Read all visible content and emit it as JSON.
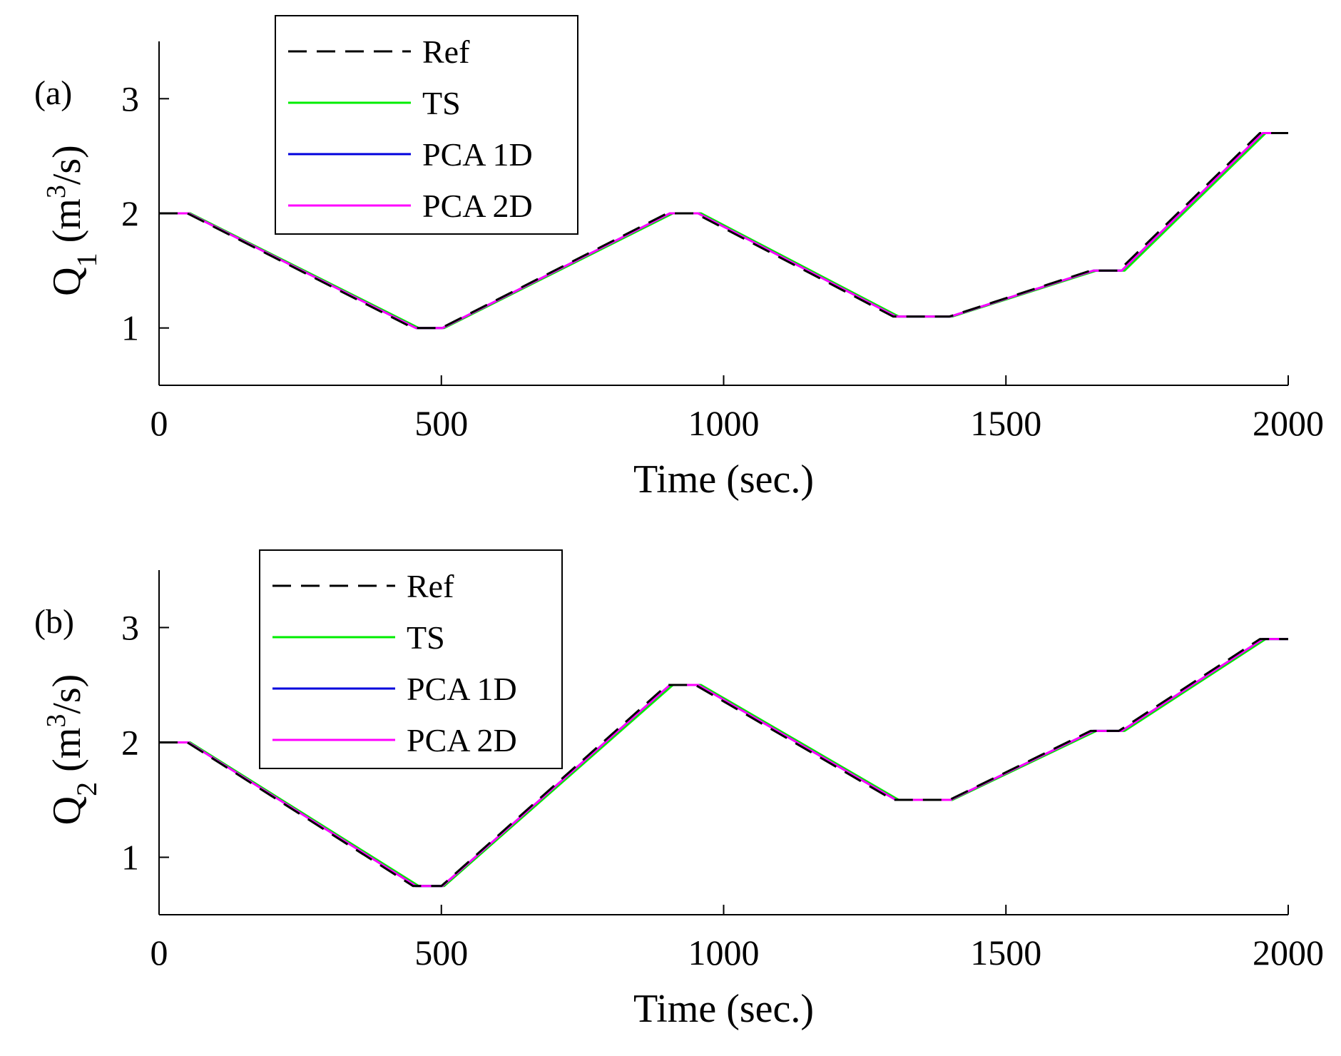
{
  "chart_data": [
    {
      "type": "line",
      "panel_label": "(a)",
      "xlabel": "Time (sec.)",
      "ylabel": {
        "main": "Q",
        "sub": "1",
        "unit_pre": "(m",
        "unit_sup": "3",
        "unit_post": "/s)"
      },
      "xlim": [
        0,
        2000
      ],
      "ylim": [
        0.5,
        3.5
      ],
      "xticks": [
        0,
        500,
        1000,
        1500,
        2000
      ],
      "yticks": [
        1,
        2,
        3
      ],
      "grid": false,
      "legend_position": "top-left",
      "series": [
        {
          "name": "Ref",
          "color": "#000000",
          "dash": true,
          "x": [
            0,
            50,
            450,
            500,
            900,
            950,
            1300,
            1400,
            1650,
            1700,
            1950,
            2000
          ],
          "y": [
            2.0,
            2.0,
            1.0,
            1.0,
            2.0,
            2.0,
            1.1,
            1.1,
            1.5,
            1.5,
            2.7,
            2.7
          ]
        },
        {
          "name": "TS",
          "color": "#00ee00",
          "dash": false,
          "x": [
            0,
            55,
            460,
            505,
            910,
            960,
            1310,
            1405,
            1660,
            1710,
            1960,
            2000
          ],
          "y": [
            2.0,
            2.0,
            1.0,
            1.0,
            2.0,
            2.0,
            1.1,
            1.1,
            1.5,
            1.5,
            2.7,
            2.7
          ]
        },
        {
          "name": "PCA 1D",
          "color": "#0000dd",
          "dash": false,
          "x": [
            0,
            52,
            455,
            502,
            905,
            955,
            1305,
            1402,
            1655,
            1705,
            1955,
            2000
          ],
          "y": [
            2.0,
            2.0,
            1.0,
            1.0,
            2.0,
            2.0,
            1.1,
            1.1,
            1.5,
            1.5,
            2.7,
            2.7
          ]
        },
        {
          "name": "PCA 2D",
          "color": "#ff00ff",
          "dash": false,
          "x": [
            0,
            52,
            455,
            502,
            905,
            955,
            1305,
            1402,
            1655,
            1705,
            1955,
            2000
          ],
          "y": [
            2.0,
            2.0,
            1.0,
            1.0,
            2.0,
            2.0,
            1.1,
            1.1,
            1.5,
            1.5,
            2.7,
            2.7
          ]
        }
      ]
    },
    {
      "type": "line",
      "panel_label": "(b)",
      "xlabel": "Time (sec.)",
      "ylabel": {
        "main": "Q",
        "sub": "2",
        "unit_pre": "(m",
        "unit_sup": "3",
        "unit_post": "/s)"
      },
      "xlim": [
        0,
        2000
      ],
      "ylim": [
        0.5,
        3.5
      ],
      "xticks": [
        0,
        500,
        1000,
        1500,
        2000
      ],
      "yticks": [
        1,
        2,
        3
      ],
      "grid": false,
      "legend_position": "top-left",
      "series": [
        {
          "name": "Ref",
          "color": "#000000",
          "dash": true,
          "x": [
            0,
            50,
            450,
            500,
            900,
            950,
            1300,
            1400,
            1650,
            1700,
            1950,
            2000
          ],
          "y": [
            2.0,
            2.0,
            0.75,
            0.75,
            2.5,
            2.5,
            1.5,
            1.5,
            2.1,
            2.1,
            2.9,
            2.9
          ]
        },
        {
          "name": "TS",
          "color": "#00ee00",
          "dash": false,
          "x": [
            0,
            55,
            460,
            505,
            910,
            960,
            1310,
            1405,
            1660,
            1710,
            1960,
            2000
          ],
          "y": [
            2.0,
            2.0,
            0.75,
            0.75,
            2.5,
            2.5,
            1.5,
            1.5,
            2.1,
            2.1,
            2.9,
            2.9
          ]
        },
        {
          "name": "PCA 1D",
          "color": "#0000dd",
          "dash": false,
          "x": [
            0,
            52,
            455,
            502,
            905,
            955,
            1305,
            1402,
            1655,
            1705,
            1955,
            2000
          ],
          "y": [
            2.0,
            2.0,
            0.75,
            0.75,
            2.5,
            2.5,
            1.5,
            1.5,
            2.1,
            2.1,
            2.9,
            2.9
          ]
        },
        {
          "name": "PCA 2D",
          "color": "#ff00ff",
          "dash": false,
          "x": [
            0,
            52,
            455,
            502,
            905,
            955,
            1305,
            1402,
            1655,
            1705,
            1955,
            2000
          ],
          "y": [
            2.0,
            2.0,
            0.75,
            0.75,
            2.5,
            2.5,
            1.5,
            1.5,
            2.1,
            2.1,
            2.9,
            2.9
          ]
        }
      ]
    }
  ]
}
